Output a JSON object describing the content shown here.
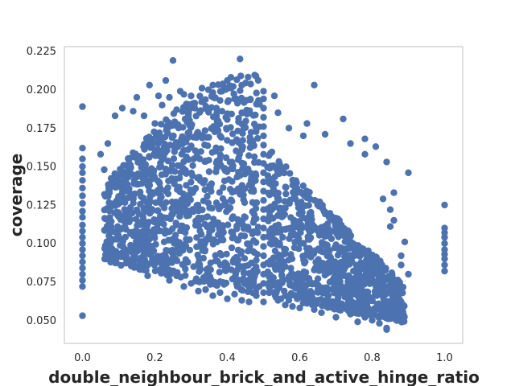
{
  "chart_data": {
    "type": "scatter",
    "title": "",
    "xlabel": "double_neighbour_brick_and_active_hinge_ratio",
    "ylabel": "coverage",
    "xlim": [
      -0.05,
      1.05
    ],
    "ylim": [
      0.035,
      0.228
    ],
    "xticks": [
      0.0,
      0.2,
      0.4,
      0.6,
      0.8,
      1.0
    ],
    "xtick_labels": [
      "0.0",
      "0.2",
      "0.4",
      "0.6",
      "0.8",
      "1.0"
    ],
    "yticks": [
      0.05,
      0.075,
      0.1,
      0.125,
      0.15,
      0.175,
      0.2,
      0.225
    ],
    "ytick_labels": [
      "0.050",
      "0.075",
      "0.100",
      "0.125",
      "0.150",
      "0.175",
      "0.200",
      "0.225"
    ],
    "grid": false,
    "marker_color": "#4C72B0",
    "points": [
      [
        0.0,
        0.189
      ],
      [
        0.0,
        0.162
      ],
      [
        0.0,
        0.155
      ],
      [
        0.0,
        0.15
      ],
      [
        0.0,
        0.146
      ],
      [
        0.0,
        0.141
      ],
      [
        0.0,
        0.136
      ],
      [
        0.0,
        0.131
      ],
      [
        0.0,
        0.126
      ],
      [
        0.0,
        0.121
      ],
      [
        0.0,
        0.117
      ],
      [
        0.0,
        0.112
      ],
      [
        0.0,
        0.108
      ],
      [
        0.0,
        0.104
      ],
      [
        0.0,
        0.1
      ],
      [
        0.0,
        0.096
      ],
      [
        0.0,
        0.092
      ],
      [
        0.0,
        0.088
      ],
      [
        0.0,
        0.084
      ],
      [
        0.0,
        0.08
      ],
      [
        0.0,
        0.076
      ],
      [
        0.0,
        0.072
      ],
      [
        0.0,
        0.053
      ],
      [
        0.5,
        0.199
      ],
      [
        0.5,
        0.194
      ],
      [
        0.5,
        0.188
      ],
      [
        0.5,
        0.182
      ],
      [
        0.5,
        0.176
      ],
      [
        0.5,
        0.17
      ],
      [
        0.5,
        0.164
      ],
      [
        0.5,
        0.158
      ],
      [
        0.5,
        0.152
      ],
      [
        0.5,
        0.146
      ],
      [
        0.5,
        0.14
      ],
      [
        0.5,
        0.134
      ],
      [
        0.5,
        0.128
      ],
      [
        0.5,
        0.122
      ],
      [
        0.5,
        0.116
      ],
      [
        0.5,
        0.11
      ],
      [
        0.5,
        0.104
      ],
      [
        0.5,
        0.098
      ],
      [
        0.5,
        0.092
      ],
      [
        0.5,
        0.086
      ],
      [
        0.5,
        0.08
      ],
      [
        0.5,
        0.074
      ],
      [
        0.5,
        0.068
      ],
      [
        0.5,
        0.062
      ],
      [
        1.0,
        0.125
      ],
      [
        1.0,
        0.11
      ],
      [
        1.0,
        0.107
      ],
      [
        1.0,
        0.104
      ],
      [
        1.0,
        0.1
      ],
      [
        1.0,
        0.096
      ],
      [
        1.0,
        0.093
      ],
      [
        1.0,
        0.09
      ],
      [
        1.0,
        0.086
      ],
      [
        1.0,
        0.082
      ],
      [
        0.25,
        0.219
      ],
      [
        0.435,
        0.22
      ],
      [
        0.41,
        0.208
      ],
      [
        0.4,
        0.206
      ],
      [
        0.23,
        0.206
      ],
      [
        0.36,
        0.203
      ],
      [
        0.185,
        0.203
      ],
      [
        0.64,
        0.203
      ],
      [
        0.33,
        0.201
      ],
      [
        0.27,
        0.199
      ],
      [
        0.21,
        0.196
      ],
      [
        0.28,
        0.197
      ],
      [
        0.3,
        0.196
      ],
      [
        0.24,
        0.195
      ],
      [
        0.15,
        0.195
      ],
      [
        0.53,
        0.196
      ],
      [
        0.42,
        0.194
      ],
      [
        0.38,
        0.193
      ],
      [
        0.22,
        0.19
      ],
      [
        0.31,
        0.188
      ],
      [
        0.44,
        0.185
      ],
      [
        0.26,
        0.187
      ],
      [
        0.11,
        0.188
      ],
      [
        0.14,
        0.186
      ],
      [
        0.37,
        0.188
      ],
      [
        0.17,
        0.183
      ],
      [
        0.09,
        0.183
      ],
      [
        0.2,
        0.178
      ],
      [
        0.54,
        0.185
      ],
      [
        0.72,
        0.181
      ],
      [
        0.62,
        0.178
      ],
      [
        0.57,
        0.175
      ],
      [
        0.67,
        0.171
      ],
      [
        0.61,
        0.17
      ],
      [
        0.05,
        0.158
      ],
      [
        0.07,
        0.165
      ],
      [
        0.06,
        0.148
      ],
      [
        0.08,
        0.142
      ],
      [
        0.78,
        0.168
      ],
      [
        0.74,
        0.165
      ],
      [
        0.81,
        0.163
      ],
      [
        0.78,
        0.158
      ],
      [
        0.84,
        0.153
      ],
      [
        0.9,
        0.146
      ],
      [
        0.86,
        0.133
      ],
      [
        0.83,
        0.129
      ],
      [
        0.85,
        0.122
      ],
      [
        0.86,
        0.115
      ],
      [
        0.85,
        0.111
      ],
      [
        0.89,
        0.101
      ],
      [
        0.88,
        0.092
      ],
      [
        0.9,
        0.08
      ],
      [
        0.88,
        0.086
      ],
      [
        0.87,
        0.073
      ],
      [
        0.84,
        0.068
      ],
      [
        0.83,
        0.057
      ],
      [
        0.8,
        0.05
      ],
      [
        0.82,
        0.048
      ],
      [
        0.84,
        0.045
      ],
      [
        0.78,
        0.052
      ],
      [
        0.76,
        0.049
      ],
      [
        0.74,
        0.054
      ],
      [
        0.7,
        0.052
      ],
      [
        0.66,
        0.055
      ],
      [
        0.84,
        0.044
      ],
      [
        0.12,
        0.092
      ],
      [
        0.14,
        0.086
      ],
      [
        0.16,
        0.083
      ],
      [
        0.18,
        0.079
      ],
      [
        0.22,
        0.085
      ],
      [
        0.24,
        0.076
      ],
      [
        0.26,
        0.079
      ],
      [
        0.28,
        0.072
      ],
      [
        0.3,
        0.074
      ],
      [
        0.32,
        0.069
      ],
      [
        0.34,
        0.07
      ],
      [
        0.36,
        0.066
      ],
      [
        0.38,
        0.068
      ],
      [
        0.4,
        0.064
      ],
      [
        0.42,
        0.067
      ],
      [
        0.44,
        0.063
      ],
      [
        0.46,
        0.062
      ],
      [
        0.48,
        0.066
      ],
      [
        0.54,
        0.063
      ],
      [
        0.56,
        0.06
      ],
      [
        0.58,
        0.059
      ],
      [
        0.6,
        0.058
      ],
      [
        0.62,
        0.061
      ],
      [
        0.64,
        0.057
      ],
      [
        0.68,
        0.06
      ],
      [
        0.72,
        0.058
      ],
      [
        0.76,
        0.057
      ]
    ]
  }
}
